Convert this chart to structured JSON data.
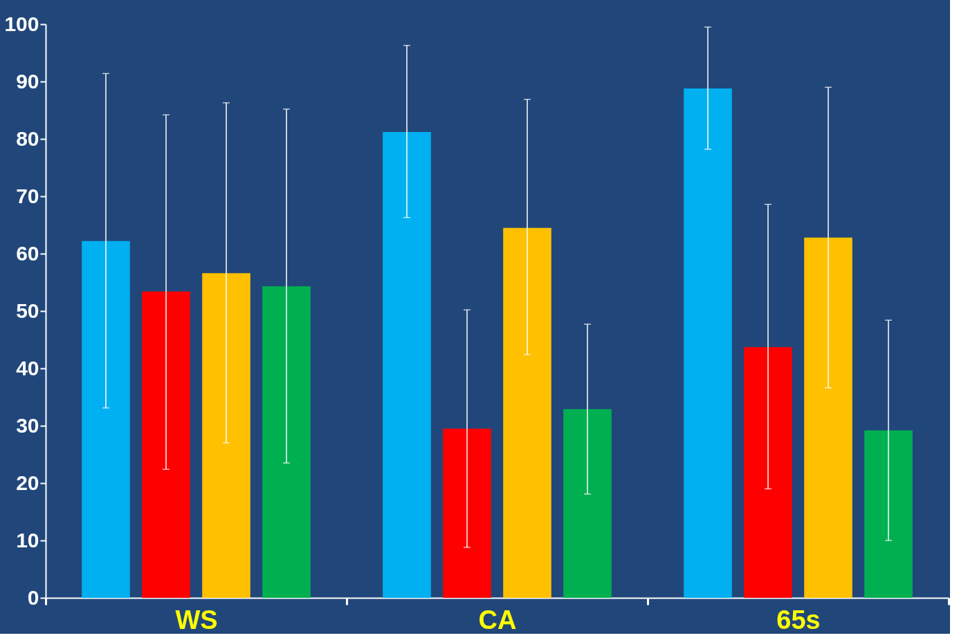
{
  "chart_data": {
    "type": "bar",
    "categories": [
      "WS",
      "CA",
      "65s"
    ],
    "series": [
      {
        "color": "#00b0f0",
        "values": [
          62.2,
          81.2,
          88.8
        ],
        "errors": [
          [
            33.1,
            91.4
          ],
          [
            66.3,
            96.3
          ],
          [
            78.2,
            99.5
          ]
        ]
      },
      {
        "color": "#ff0000",
        "values": [
          53.4,
          29.5,
          43.7
        ],
        "errors": [
          [
            22.4,
            84.2
          ],
          [
            8.8,
            50.2
          ],
          [
            19.0,
            68.6
          ]
        ]
      },
      {
        "color": "#ffc000",
        "values": [
          56.6,
          64.5,
          62.8
        ],
        "errors": [
          [
            27.0,
            86.3
          ],
          [
            42.4,
            86.9
          ],
          [
            36.6,
            89.0
          ]
        ]
      },
      {
        "color": "#00b050",
        "values": [
          54.3,
          32.9,
          29.2
        ],
        "errors": [
          [
            23.5,
            85.2
          ],
          [
            18.1,
            47.7
          ],
          [
            10.0,
            48.4
          ]
        ]
      }
    ],
    "ylim": [
      0,
      100
    ],
    "yticks": [
      0,
      10,
      20,
      30,
      40,
      50,
      60,
      70,
      80,
      90,
      100
    ],
    "grid": false,
    "legend": false
  }
}
